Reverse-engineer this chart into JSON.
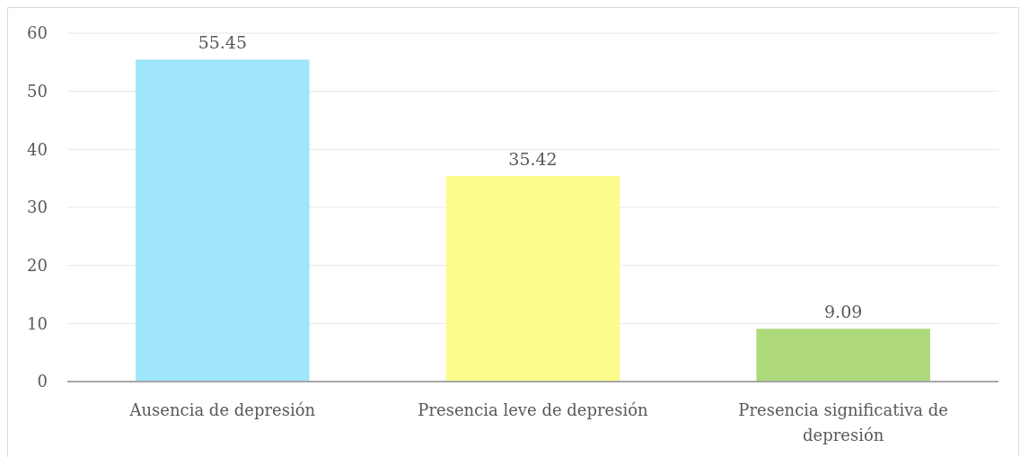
{
  "chart_data": {
    "type": "bar",
    "categories": [
      "Ausencia de depresión",
      "Presencia leve de depresión",
      "Presencia significativa de depresión"
    ],
    "values": [
      55.45,
      35.42,
      9.09
    ],
    "colors": [
      "#9fe5fb",
      "#fcfc8c",
      "#aed97a"
    ],
    "ylim": [
      0,
      60
    ],
    "yticks": [
      0,
      10,
      20,
      30,
      40,
      50,
      60
    ],
    "grid": "y",
    "data_labels": true
  }
}
